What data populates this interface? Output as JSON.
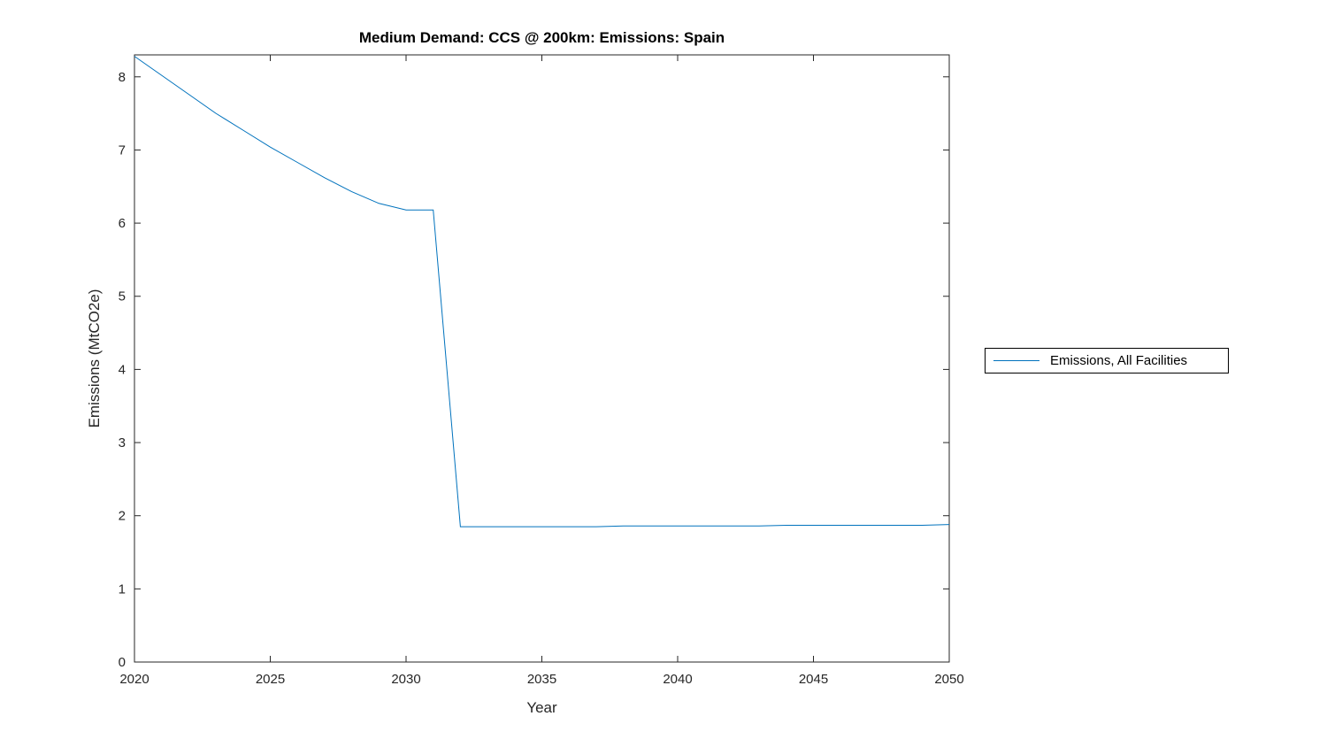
{
  "chart_data": {
    "type": "line",
    "title": "Medium Demand: CCS @ 200km: Emissions: Spain",
    "xlabel": "Year",
    "ylabel": "Emissions (MtCO2e)",
    "xlim": [
      2020,
      2050
    ],
    "ylim": [
      0,
      8.3
    ],
    "xticks": [
      2020,
      2025,
      2030,
      2035,
      2040,
      2045,
      2050
    ],
    "yticks": [
      0,
      1,
      2,
      3,
      4,
      5,
      6,
      7,
      8
    ],
    "grid": false,
    "legend_position": "right-outside",
    "legend": [
      "Emissions, All Facilities"
    ],
    "line_color": "#0072BD",
    "axis_color": "#262626",
    "x": [
      2020,
      2021,
      2022,
      2023,
      2024,
      2025,
      2026,
      2027,
      2028,
      2029,
      2030,
      2031,
      2032,
      2033,
      2034,
      2035,
      2036,
      2037,
      2038,
      2039,
      2040,
      2041,
      2042,
      2043,
      2044,
      2045,
      2046,
      2047,
      2048,
      2049,
      2050
    ],
    "series": [
      {
        "name": "Emissions, All Facilities",
        "values": [
          8.28,
          8.02,
          7.76,
          7.5,
          7.27,
          7.04,
          6.83,
          6.62,
          6.43,
          6.27,
          6.18,
          6.18,
          1.85,
          1.85,
          1.85,
          1.85,
          1.85,
          1.85,
          1.86,
          1.86,
          1.86,
          1.86,
          1.86,
          1.86,
          1.87,
          1.87,
          1.87,
          1.87,
          1.87,
          1.87,
          1.88
        ]
      }
    ]
  }
}
